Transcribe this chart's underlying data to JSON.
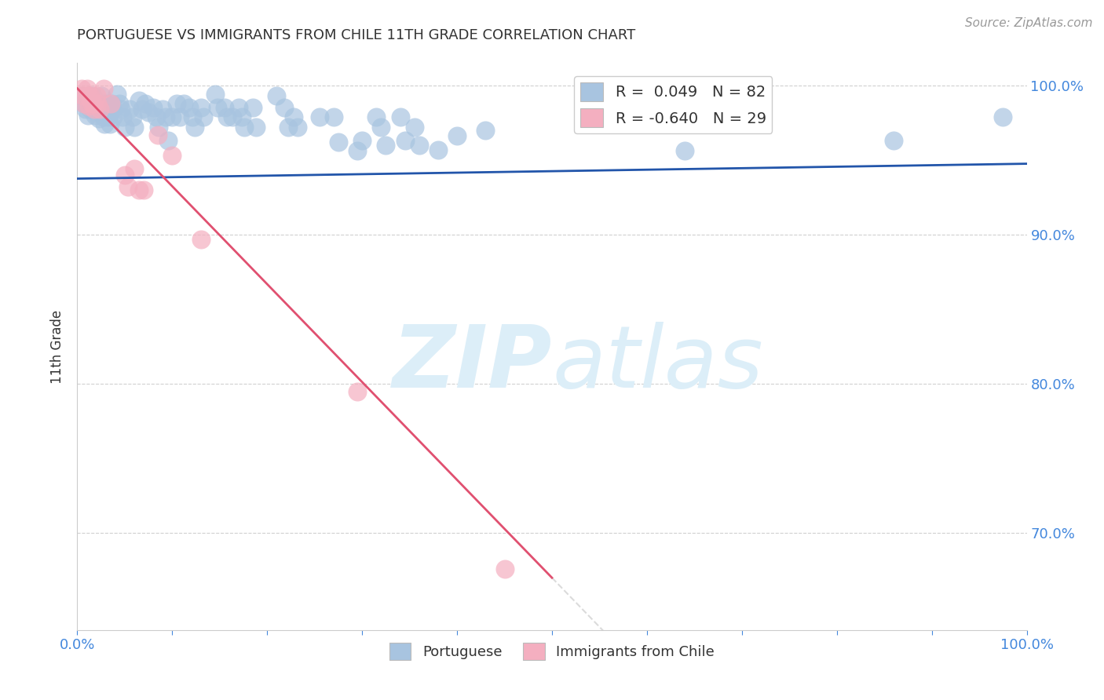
{
  "title": "PORTUGUESE VS IMMIGRANTS FROM CHILE 11TH GRADE CORRELATION CHART",
  "source": "Source: ZipAtlas.com",
  "ylabel": "11th Grade",
  "xlim": [
    0.0,
    1.0
  ],
  "ylim": [
    0.635,
    1.015
  ],
  "yticks": [
    0.7,
    0.8,
    0.9,
    1.0
  ],
  "ytick_labels": [
    "70.0%",
    "80.0%",
    "90.0%",
    "100.0%"
  ],
  "xticks": [
    0.0,
    0.1,
    0.2,
    0.3,
    0.4,
    0.5,
    0.6,
    0.7,
    0.8,
    0.9,
    1.0
  ],
  "blue_R": 0.049,
  "blue_N": 82,
  "pink_R": -0.64,
  "pink_N": 29,
  "blue_color": "#a8c4e0",
  "pink_color": "#f4afc0",
  "blue_line_color": "#2255aa",
  "pink_line_color": "#e05070",
  "watermark_color": "#dceef8",
  "legend_label_blue": "Portuguese",
  "legend_label_pink": "Immigrants from Chile",
  "blue_points": [
    [
      0.005,
      0.993
    ],
    [
      0.007,
      0.988
    ],
    [
      0.009,
      0.984
    ],
    [
      0.011,
      0.98
    ],
    [
      0.012,
      0.993
    ],
    [
      0.013,
      0.988
    ],
    [
      0.014,
      0.984
    ],
    [
      0.016,
      0.993
    ],
    [
      0.017,
      0.988
    ],
    [
      0.018,
      0.984
    ],
    [
      0.019,
      0.98
    ],
    [
      0.021,
      0.988
    ],
    [
      0.022,
      0.984
    ],
    [
      0.023,
      0.978
    ],
    [
      0.025,
      0.993
    ],
    [
      0.026,
      0.988
    ],
    [
      0.027,
      0.984
    ],
    [
      0.028,
      0.979
    ],
    [
      0.029,
      0.974
    ],
    [
      0.031,
      0.988
    ],
    [
      0.032,
      0.983
    ],
    [
      0.033,
      0.979
    ],
    [
      0.034,
      0.974
    ],
    [
      0.036,
      0.988
    ],
    [
      0.037,
      0.984
    ],
    [
      0.038,
      0.979
    ],
    [
      0.042,
      0.994
    ],
    [
      0.044,
      0.988
    ],
    [
      0.046,
      0.984
    ],
    [
      0.048,
      0.979
    ],
    [
      0.05,
      0.972
    ],
    [
      0.055,
      0.984
    ],
    [
      0.058,
      0.979
    ],
    [
      0.06,
      0.972
    ],
    [
      0.065,
      0.99
    ],
    [
      0.068,
      0.984
    ],
    [
      0.072,
      0.988
    ],
    [
      0.075,
      0.982
    ],
    [
      0.08,
      0.985
    ],
    [
      0.083,
      0.979
    ],
    [
      0.086,
      0.972
    ],
    [
      0.09,
      0.984
    ],
    [
      0.093,
      0.979
    ],
    [
      0.096,
      0.963
    ],
    [
      0.1,
      0.979
    ],
    [
      0.105,
      0.988
    ],
    [
      0.108,
      0.979
    ],
    [
      0.112,
      0.988
    ],
    [
      0.118,
      0.985
    ],
    [
      0.121,
      0.979
    ],
    [
      0.124,
      0.972
    ],
    [
      0.13,
      0.985
    ],
    [
      0.133,
      0.979
    ],
    [
      0.145,
      0.994
    ],
    [
      0.148,
      0.985
    ],
    [
      0.155,
      0.985
    ],
    [
      0.158,
      0.979
    ],
    [
      0.163,
      0.979
    ],
    [
      0.17,
      0.985
    ],
    [
      0.173,
      0.979
    ],
    [
      0.176,
      0.972
    ],
    [
      0.185,
      0.985
    ],
    [
      0.188,
      0.972
    ],
    [
      0.21,
      0.993
    ],
    [
      0.218,
      0.985
    ],
    [
      0.222,
      0.972
    ],
    [
      0.228,
      0.979
    ],
    [
      0.232,
      0.972
    ],
    [
      0.255,
      0.979
    ],
    [
      0.27,
      0.979
    ],
    [
      0.275,
      0.962
    ],
    [
      0.295,
      0.956
    ],
    [
      0.3,
      0.963
    ],
    [
      0.315,
      0.979
    ],
    [
      0.32,
      0.972
    ],
    [
      0.325,
      0.96
    ],
    [
      0.34,
      0.979
    ],
    [
      0.345,
      0.963
    ],
    [
      0.355,
      0.972
    ],
    [
      0.36,
      0.96
    ],
    [
      0.38,
      0.957
    ],
    [
      0.4,
      0.966
    ],
    [
      0.43,
      0.97
    ],
    [
      0.64,
      0.956
    ],
    [
      0.86,
      0.963
    ],
    [
      0.975,
      0.979
    ]
  ],
  "pink_points": [
    [
      0.005,
      0.998
    ],
    [
      0.006,
      0.993
    ],
    [
      0.007,
      0.988
    ],
    [
      0.01,
      0.998
    ],
    [
      0.011,
      0.993
    ],
    [
      0.012,
      0.986
    ],
    [
      0.014,
      0.993
    ],
    [
      0.015,
      0.988
    ],
    [
      0.017,
      0.988
    ],
    [
      0.018,
      0.984
    ],
    [
      0.02,
      0.993
    ],
    [
      0.021,
      0.988
    ],
    [
      0.024,
      0.984
    ],
    [
      0.028,
      0.998
    ],
    [
      0.035,
      0.988
    ],
    [
      0.05,
      0.94
    ],
    [
      0.053,
      0.932
    ],
    [
      0.06,
      0.944
    ],
    [
      0.065,
      0.93
    ],
    [
      0.07,
      0.93
    ],
    [
      0.085,
      0.967
    ],
    [
      0.1,
      0.953
    ],
    [
      0.13,
      0.897
    ],
    [
      0.295,
      0.795
    ],
    [
      0.45,
      0.676
    ]
  ],
  "blue_line_x": [
    0.0,
    1.0
  ],
  "blue_line_y_start": 0.9375,
  "blue_line_y_end": 0.9475,
  "pink_line_x_start": 0.0,
  "pink_line_x_end": 0.5,
  "pink_line_y_start": 0.998,
  "pink_line_y_end": 0.67,
  "pink_line_ext_x_end": 0.62,
  "pink_line_ext_y_end": 0.591
}
